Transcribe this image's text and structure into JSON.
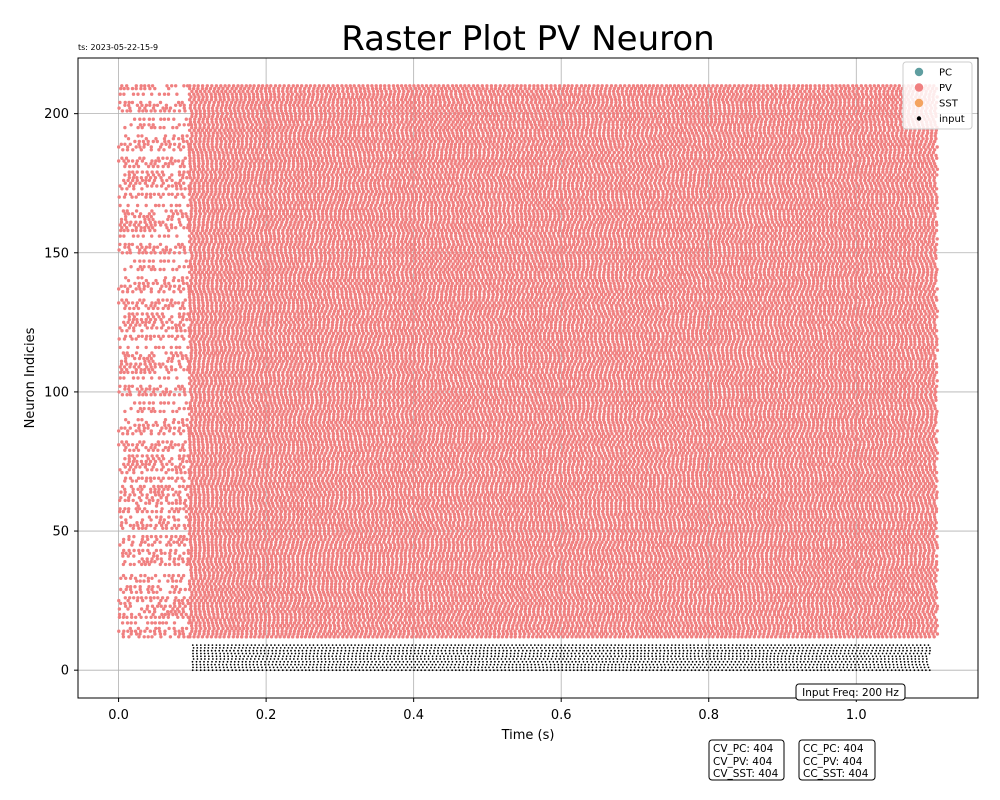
{
  "chart_data": {
    "type": "scatter",
    "title": "Raster Plot PV Neuron",
    "timestamp": "ts: 2023-05-22-15-9",
    "xlabel": "Time (s)",
    "ylabel": "Neuron Indicies",
    "xlim": [
      -0.055,
      1.165
    ],
    "ylim": [
      -10,
      220
    ],
    "xticks": [
      "0.0",
      "0.2",
      "0.4",
      "0.6",
      "0.8",
      "1.0"
    ],
    "xtick_values": [
      0.0,
      0.2,
      0.4,
      0.6,
      0.8,
      1.0
    ],
    "yticks": [
      "0",
      "50",
      "100",
      "150",
      "200"
    ],
    "ytick_values": [
      0,
      50,
      100,
      150,
      200
    ],
    "grid": true,
    "legend_position": "top-right",
    "series": [
      {
        "name": "PC",
        "color": "#5f9ea0",
        "neuron_range": null,
        "time_range": null
      },
      {
        "name": "PV",
        "color": "#f08080",
        "neuron_range": [
          12,
          210
        ],
        "time_range": [
          0.0,
          1.11
        ],
        "sparse_until": 0.096
      },
      {
        "name": "SST",
        "color": "#f4a460",
        "neuron_range": null,
        "time_range": null
      },
      {
        "name": "input",
        "color": "#000000",
        "neuron_range": [
          0,
          9
        ],
        "time_range": [
          0.1,
          1.1
        ]
      }
    ],
    "annotations": {
      "input_freq": "Input Freq: 200 Hz",
      "cv": [
        "CV_PC: 404",
        "CV_PV: 404",
        "CV_SST: 404"
      ],
      "cc": [
        "CC_PC: 404",
        "CC_PV: 404",
        "CC_SST: 404"
      ]
    }
  }
}
